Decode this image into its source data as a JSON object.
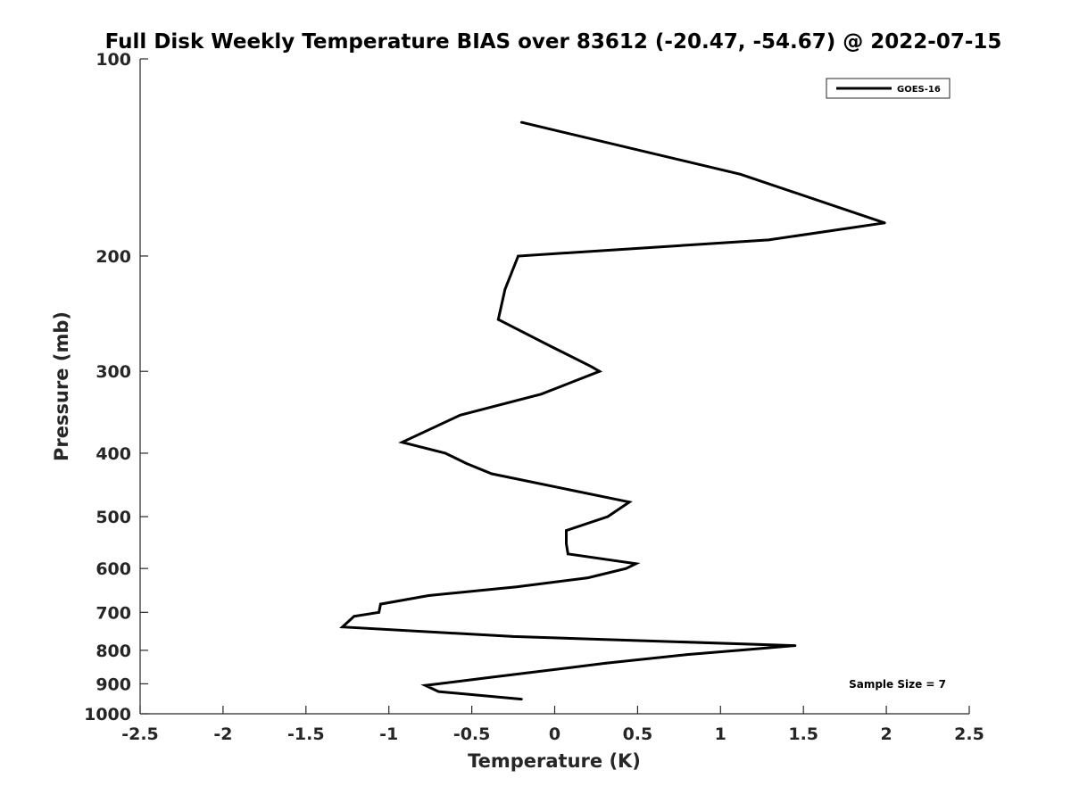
{
  "chart_data": {
    "type": "line",
    "title": "Full Disk Weekly Temperature BIAS over 83612 (-20.47, -54.67) @ 2022-07-15",
    "xlabel": "Temperature (K)",
    "ylabel": "Pressure (mb)",
    "xlim": [
      -2.5,
      2.5
    ],
    "ylim": [
      100,
      1000
    ],
    "y_scale": "log",
    "y_reversed": true,
    "x_ticks": [
      -2.5,
      -2,
      -1.5,
      -1,
      -0.5,
      0,
      0.5,
      1,
      1.5,
      2,
      2.5
    ],
    "x_tick_labels": [
      "-2.5",
      "-2",
      "-1.5",
      "-1",
      "-0.5",
      "0",
      "0.5",
      "1",
      "1.5",
      "2",
      "2.5"
    ],
    "y_ticks": [
      100,
      200,
      300,
      400,
      500,
      600,
      700,
      800,
      900,
      1000
    ],
    "y_tick_labels": [
      "100",
      "200",
      "300",
      "400",
      "500",
      "600",
      "700",
      "800",
      "900",
      "1000"
    ],
    "grid": false,
    "legend_position": "top-right",
    "annotation": "Sample Size = 7",
    "series": [
      {
        "name": "GOES-16",
        "color": "#000000",
        "points": [
          {
            "x": -0.2,
            "pressure": 125
          },
          {
            "x": 1.12,
            "pressure": 150
          },
          {
            "x": 1.99,
            "pressure": 178
          },
          {
            "x": 1.29,
            "pressure": 189
          },
          {
            "x": -0.22,
            "pressure": 200
          },
          {
            "x": -0.3,
            "pressure": 225
          },
          {
            "x": -0.34,
            "pressure": 250
          },
          {
            "x": -0.02,
            "pressure": 275
          },
          {
            "x": 0.22,
            "pressure": 295
          },
          {
            "x": 0.27,
            "pressure": 300
          },
          {
            "x": -0.08,
            "pressure": 325
          },
          {
            "x": -0.57,
            "pressure": 350
          },
          {
            "x": -0.92,
            "pressure": 385
          },
          {
            "x": -0.66,
            "pressure": 400
          },
          {
            "x": -0.53,
            "pressure": 415
          },
          {
            "x": -0.38,
            "pressure": 430
          },
          {
            "x": 0.45,
            "pressure": 475
          },
          {
            "x": 0.32,
            "pressure": 500
          },
          {
            "x": 0.07,
            "pressure": 525
          },
          {
            "x": 0.07,
            "pressure": 550
          },
          {
            "x": 0.08,
            "pressure": 570
          },
          {
            "x": 0.49,
            "pressure": 590
          },
          {
            "x": 0.43,
            "pressure": 600
          },
          {
            "x": 0.2,
            "pressure": 620
          },
          {
            "x": -0.23,
            "pressure": 640
          },
          {
            "x": -0.76,
            "pressure": 660
          },
          {
            "x": -1.05,
            "pressure": 680
          },
          {
            "x": -1.06,
            "pressure": 700
          },
          {
            "x": -1.21,
            "pressure": 710
          },
          {
            "x": -1.28,
            "pressure": 737
          },
          {
            "x": -0.25,
            "pressure": 762
          },
          {
            "x": 1.45,
            "pressure": 787
          },
          {
            "x": 1.11,
            "pressure": 800
          },
          {
            "x": 0.8,
            "pressure": 812
          },
          {
            "x": 0.31,
            "pressure": 837
          },
          {
            "x": -0.39,
            "pressure": 880
          },
          {
            "x": -0.78,
            "pressure": 905
          },
          {
            "x": -0.7,
            "pressure": 925
          },
          {
            "x": -0.2,
            "pressure": 950
          }
        ]
      }
    ]
  }
}
